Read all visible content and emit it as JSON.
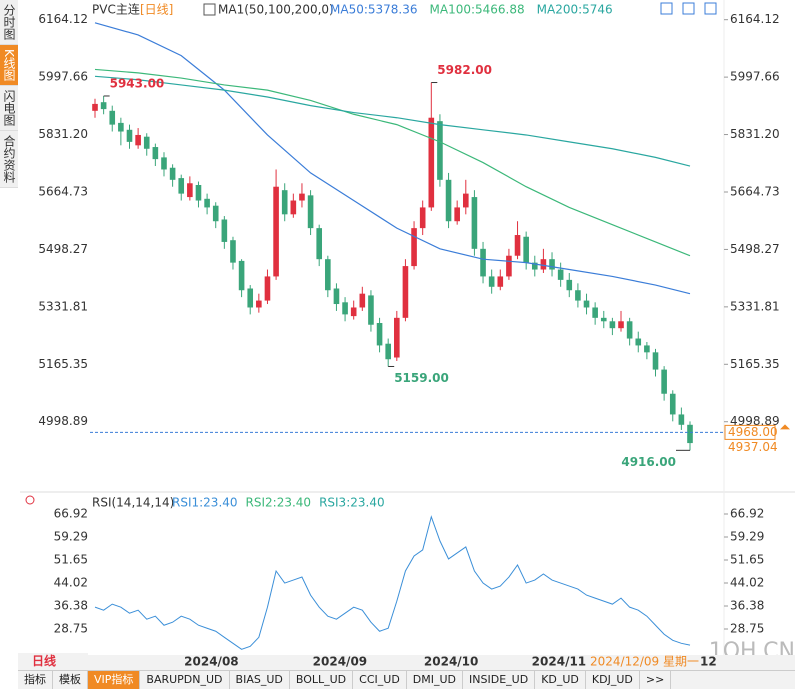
{
  "sidebar": [
    "分时图",
    "K线图",
    "闪电图",
    "合约资料"
  ],
  "period_button": "日线",
  "toolbar": [
    "指标",
    "模板",
    "VIP指标",
    "BARUPDN_UD",
    "BIAS_UD",
    "BOLL_UD",
    "CCI_UD",
    "DMI_UD",
    "INSIDE_UD",
    "KD_UD",
    "KDJ_UD",
    ">>"
  ],
  "watermark": "1OH.CN",
  "chart_data": [
    {
      "type": "candlestick",
      "title": "PVC主连",
      "period": "[日线]",
      "indicator": "MA1(50,100,200,0)",
      "up_color": "#e0303f",
      "down_color": "#3aa57a",
      "candles": [
        [
          5900,
          5935,
          5880,
          5920
        ],
        [
          5925,
          5943,
          5890,
          5905
        ],
        [
          5900,
          5915,
          5840,
          5860
        ],
        [
          5865,
          5880,
          5800,
          5840
        ],
        [
          5845,
          5860,
          5790,
          5810
        ],
        [
          5800,
          5850,
          5790,
          5830
        ],
        [
          5825,
          5835,
          5770,
          5790
        ],
        [
          5795,
          5805,
          5740,
          5760
        ],
        [
          5765,
          5780,
          5710,
          5730
        ],
        [
          5735,
          5745,
          5680,
          5700
        ],
        [
          5705,
          5715,
          5640,
          5660
        ],
        [
          5650,
          5710,
          5640,
          5690
        ],
        [
          5685,
          5695,
          5620,
          5640
        ],
        [
          5645,
          5660,
          5600,
          5620
        ],
        [
          5625,
          5635,
          5560,
          5580
        ],
        [
          5585,
          5595,
          5500,
          5520
        ],
        [
          5525,
          5535,
          5440,
          5460
        ],
        [
          5465,
          5470,
          5360,
          5380
        ],
        [
          5385,
          5395,
          5310,
          5330
        ],
        [
          5330,
          5370,
          5315,
          5350
        ],
        [
          5350,
          5440,
          5340,
          5420
        ],
        [
          5420,
          5730,
          5410,
          5680
        ],
        [
          5670,
          5690,
          5580,
          5600
        ],
        [
          5600,
          5660,
          5590,
          5640
        ],
        [
          5640,
          5690,
          5620,
          5660
        ],
        [
          5655,
          5670,
          5540,
          5560
        ],
        [
          5560,
          5570,
          5450,
          5470
        ],
        [
          5470,
          5480,
          5360,
          5380
        ],
        [
          5385,
          5400,
          5320,
          5340
        ],
        [
          5345,
          5360,
          5290,
          5310
        ],
        [
          5305,
          5350,
          5295,
          5330
        ],
        [
          5330,
          5390,
          5320,
          5370
        ],
        [
          5365,
          5380,
          5260,
          5280
        ],
        [
          5285,
          5300,
          5200,
          5220
        ],
        [
          5225,
          5240,
          5159,
          5180
        ],
        [
          5185,
          5320,
          5175,
          5300
        ],
        [
          5300,
          5470,
          5290,
          5450
        ],
        [
          5450,
          5580,
          5440,
          5560
        ],
        [
          5560,
          5640,
          5540,
          5620
        ],
        [
          5620,
          5982,
          5610,
          5880
        ],
        [
          5870,
          5890,
          5680,
          5700
        ],
        [
          5700,
          5720,
          5560,
          5580
        ],
        [
          5580,
          5640,
          5570,
          5620
        ],
        [
          5620,
          5700,
          5600,
          5660
        ],
        [
          5650,
          5670,
          5480,
          5500
        ],
        [
          5500,
          5520,
          5400,
          5420
        ],
        [
          5420,
          5440,
          5370,
          5390
        ],
        [
          5390,
          5440,
          5380,
          5420
        ],
        [
          5420,
          5500,
          5410,
          5480
        ],
        [
          5480,
          5580,
          5470,
          5540
        ],
        [
          5535,
          5550,
          5440,
          5460
        ],
        [
          5460,
          5480,
          5420,
          5440
        ],
        [
          5440,
          5500,
          5430,
          5470
        ],
        [
          5470,
          5490,
          5420,
          5440
        ],
        [
          5440,
          5460,
          5390,
          5410
        ],
        [
          5410,
          5430,
          5360,
          5380
        ],
        [
          5380,
          5400,
          5330,
          5350
        ],
        [
          5350,
          5370,
          5310,
          5330
        ],
        [
          5330,
          5345,
          5280,
          5300
        ],
        [
          5300,
          5320,
          5270,
          5290
        ],
        [
          5290,
          5300,
          5250,
          5270
        ],
        [
          5270,
          5320,
          5260,
          5290
        ],
        [
          5290,
          5300,
          5220,
          5240
        ],
        [
          5240,
          5260,
          5200,
          5220
        ],
        [
          5220,
          5230,
          5180,
          5200
        ],
        [
          5200,
          5210,
          5130,
          5150
        ],
        [
          5150,
          5160,
          5060,
          5080
        ],
        [
          5080,
          5090,
          5000,
          5020
        ],
        [
          5020,
          5040,
          4975,
          4990
        ],
        [
          4990,
          5000,
          4916,
          4937
        ]
      ],
      "ylim": [
        4801,
        6198
      ],
      "yticks": [
        6164.12,
        5997.66,
        {
          "value": 5831.2,
          "label": "5831.20"
        },
        5664.73,
        5498.27,
        5331.81,
        5165.35,
        4998.89
      ],
      "ma_x": [
        0,
        5,
        10,
        15,
        20,
        25,
        30,
        35,
        40,
        45,
        50,
        55,
        60,
        65,
        69
      ],
      "series": [
        {
          "name": "MA50:5378.36",
          "color": "#3b7dd8",
          "values": [
            6155,
            6120,
            6060,
            5960,
            5830,
            5720,
            5640,
            5560,
            5500,
            5470,
            5460,
            5440,
            5420,
            5395,
            5370
          ]
        },
        {
          "name": "MA100:5466.88",
          "color": "#3cb87a",
          "values": [
            6020,
            6010,
            5995,
            5975,
            5960,
            5930,
            5890,
            5860,
            5810,
            5750,
            5680,
            5620,
            5570,
            5520,
            5480
          ]
        },
        {
          "name": "MA200:5746",
          "color": "#2aa7a0",
          "values": [
            6000,
            5990,
            5975,
            5960,
            5940,
            5915,
            5895,
            5880,
            5860,
            5845,
            5830,
            5810,
            5790,
            5765,
            5740
          ]
        }
      ],
      "annotations": [
        {
          "index": 1,
          "value": 5943,
          "label": "5943.00",
          "color": "#e0303f"
        },
        {
          "index": 39,
          "value": 5982,
          "label": "5982.00",
          "color": "#e0303f"
        },
        {
          "index": 34,
          "value": 5159,
          "label": "5159.00",
          "color": "#3aa57a"
        },
        {
          "index": 69,
          "value": 4916,
          "label": "4916.00",
          "color": "#3aa57a"
        }
      ],
      "last_price": {
        "value": 4968,
        "label": "4968.00"
      },
      "close_label": "4937.04",
      "date_labels": [
        {
          "index": 13.5,
          "label": "2024/08"
        },
        {
          "index": 28.4,
          "label": "2024/09"
        },
        {
          "index": 41.3,
          "label": "2024/10"
        },
        {
          "index": 53.8,
          "label": "2024/11"
        }
      ],
      "current_date": "2024/12/09 星期一",
      "end_label": "12"
    },
    {
      "type": "line",
      "title": "RSI(14,14,14)",
      "color": "#3b8fd8",
      "legend": [
        "RSI1:23.40",
        "RSI2:23.40",
        "RSI3:23.40"
      ],
      "legend_colors": [
        "#3b8fd8",
        "#3cb87a",
        "#2aa7a0"
      ],
      "values": [
        36,
        35,
        37,
        36,
        34,
        35,
        32,
        33,
        30,
        31,
        33,
        32,
        30,
        29,
        28,
        26,
        24,
        22,
        23,
        26,
        36,
        48,
        44,
        45,
        46,
        40,
        36,
        33,
        32,
        34,
        36,
        35,
        31,
        28,
        29,
        38,
        48,
        53,
        55,
        66,
        58,
        52,
        54,
        56,
        48,
        44,
        42,
        43,
        46,
        50,
        44,
        45,
        47,
        45,
        44,
        43,
        42,
        40,
        39,
        38,
        37,
        39,
        36,
        35,
        33,
        30,
        27,
        25,
        24,
        23.4
      ],
      "ylim": [
        20.12,
        71.57
      ],
      "yticks": [
        66.92,
        59.29,
        51.65,
        44.02,
        36.38,
        28.75
      ]
    }
  ]
}
